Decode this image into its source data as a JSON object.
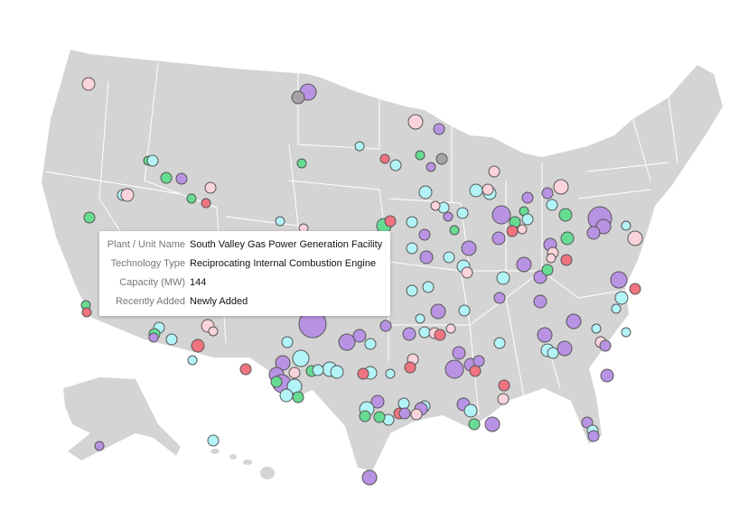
{
  "tooltip": {
    "rows": [
      {
        "label": "Plant / Unit Name",
        "value": "South Valley Gas Power Generation Facility"
      },
      {
        "label": "Technology Type",
        "value": "Reciprocating Internal Combustion Engine"
      },
      {
        "label": "Capacity (MW)",
        "value": "144"
      },
      {
        "label": "Recently Added",
        "value": "Newly Added"
      }
    ]
  }
}
